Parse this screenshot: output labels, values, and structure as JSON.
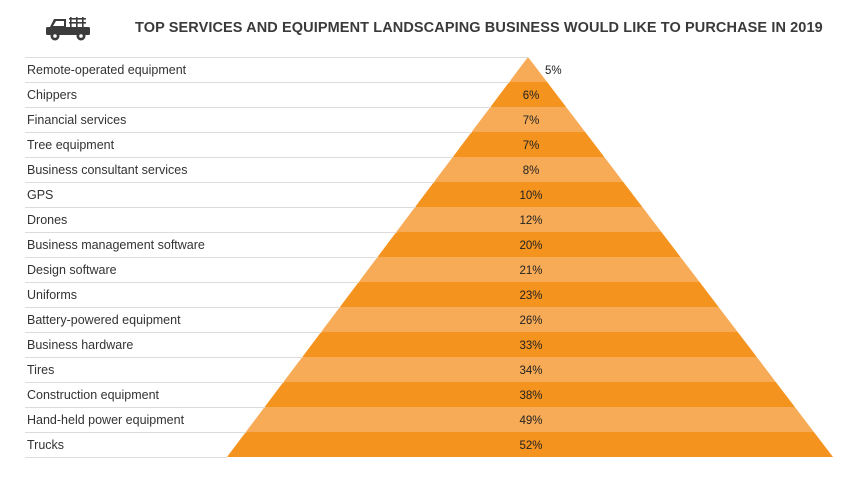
{
  "colors": {
    "dark": "#f5931f",
    "light": "#f7ab56",
    "line": "#dcdcdc",
    "icon": "#3c3c3c"
  },
  "header": {
    "icon": "pickup-truck-icon"
  },
  "chart_data": {
    "type": "bar",
    "title": "TOP SERVICES AND EQUIPMENT LANDSCAPING BUSINESS WOULD LIKE TO PURCHASE IN 2019",
    "categories": [
      "Remote-operated equipment",
      "Chippers",
      "Financial services",
      "Tree equipment",
      "Business consultant services",
      "GPS",
      "Drones",
      "Business management software",
      "Design software",
      "Uniforms",
      "Battery-powered equipment",
      "Business hardware",
      "Tires",
      "Construction equipment",
      "Hand-held power equipment",
      "Trucks"
    ],
    "values": [
      5,
      6,
      7,
      7,
      8,
      10,
      12,
      20,
      21,
      23,
      26,
      33,
      34,
      38,
      49,
      52
    ],
    "value_labels": [
      "5%",
      "6%",
      "7%",
      "7%",
      "8%",
      "10%",
      "12%",
      "20%",
      "21%",
      "23%",
      "26%",
      "33%",
      "34%",
      "38%",
      "49%",
      "52%"
    ],
    "xlabel": "",
    "ylabel": ""
  }
}
